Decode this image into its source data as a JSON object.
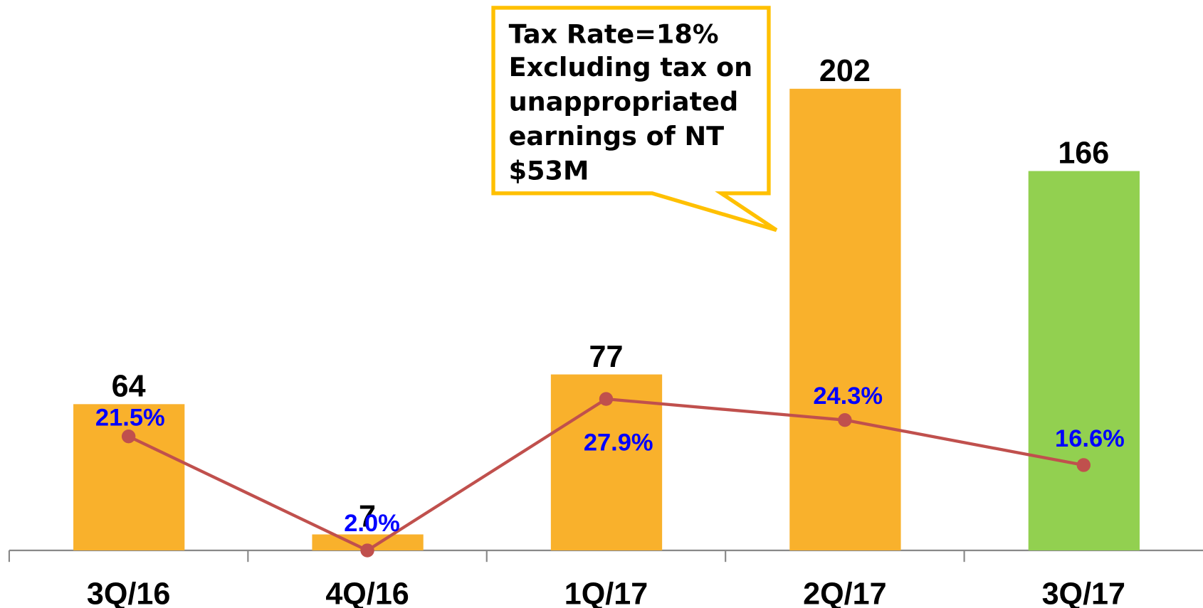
{
  "chart_data": {
    "type": "bar",
    "categories": [
      "3Q/16",
      "4Q/16",
      "1Q/17",
      "2Q/17",
      "3Q/17"
    ],
    "series": [
      {
        "type": "bar",
        "colors": [
          "#f9b12c",
          "#f9b12c",
          "#f9b12c",
          "#f9b12c",
          "#92d050"
        ],
        "values": [
          64,
          7,
          77,
          202,
          166
        ]
      },
      {
        "type": "line",
        "axis": "y2",
        "color": "#c0504d",
        "label_color": "#0000ff",
        "values": [
          21.5,
          2.0,
          27.9,
          24.3,
          16.6
        ],
        "value_labels": [
          "21.5%",
          "2.0%",
          "27.9%",
          "24.3%",
          "16.6%"
        ]
      }
    ],
    "ylim": [
      0,
      220
    ],
    "y2lim": [
      2,
      88
    ],
    "annotation": {
      "lines": [
        "Tax Rate=18%",
        "Excluding tax on",
        "unappropriated",
        "earnings of NT",
        "$53M"
      ]
    }
  }
}
